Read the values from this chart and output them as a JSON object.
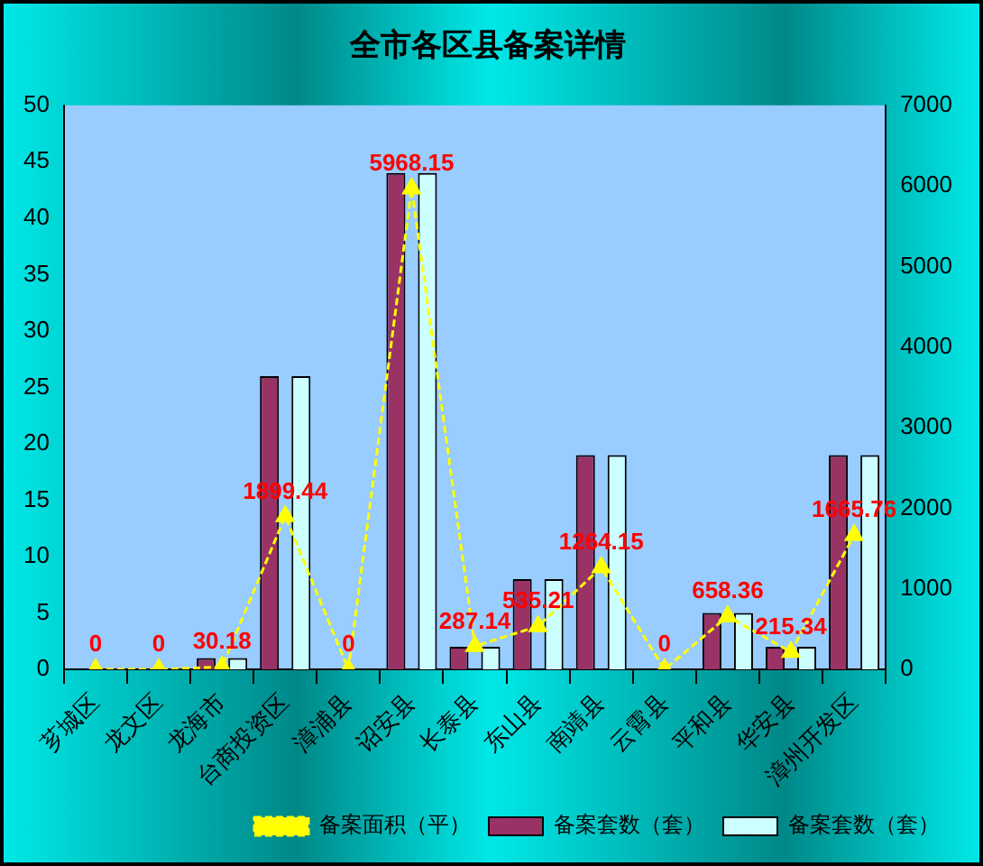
{
  "chart_data": {
    "type": "bar",
    "title": "全市各区县备案详情",
    "categories": [
      "芗城区",
      "龙文区",
      "龙海市",
      "台商投资区",
      "漳浦县",
      "诏安县",
      "长泰县",
      "东山县",
      "南靖县",
      "云霄县",
      "平和县",
      "华安县",
      "漳州开发区"
    ],
    "series": [
      {
        "name": "备案套数（套）",
        "color": "#993366",
        "values": [
          0,
          0,
          1,
          26,
          0,
          44,
          2,
          8,
          19,
          0,
          5,
          2,
          19
        ]
      },
      {
        "name": "备案套数（套）",
        "color": "#ccffff",
        "values": [
          0,
          0,
          1,
          26,
          0,
          44,
          2,
          8,
          19,
          0,
          5,
          2,
          19
        ]
      },
      {
        "name": "备案面积（平）",
        "type": "line",
        "axis": "y2",
        "color": "#ffff00",
        "marker": "triangle",
        "line_style": "dashed",
        "data_labels": true,
        "values": [
          0,
          0,
          30.18,
          1899.44,
          0,
          5968.15,
          287.14,
          535.21,
          1264.15,
          0,
          658.36,
          215.34,
          1665.76
        ]
      }
    ],
    "ylim": [
      0,
      50
    ],
    "yticks": [
      0,
      5,
      10,
      15,
      20,
      25,
      30,
      35,
      40,
      45,
      50
    ],
    "y2lim": [
      0,
      7000
    ],
    "y2ticks": [
      0,
      1000,
      2000,
      3000,
      4000,
      5000,
      6000,
      7000
    ],
    "grid": false,
    "legend": "bottom right"
  }
}
